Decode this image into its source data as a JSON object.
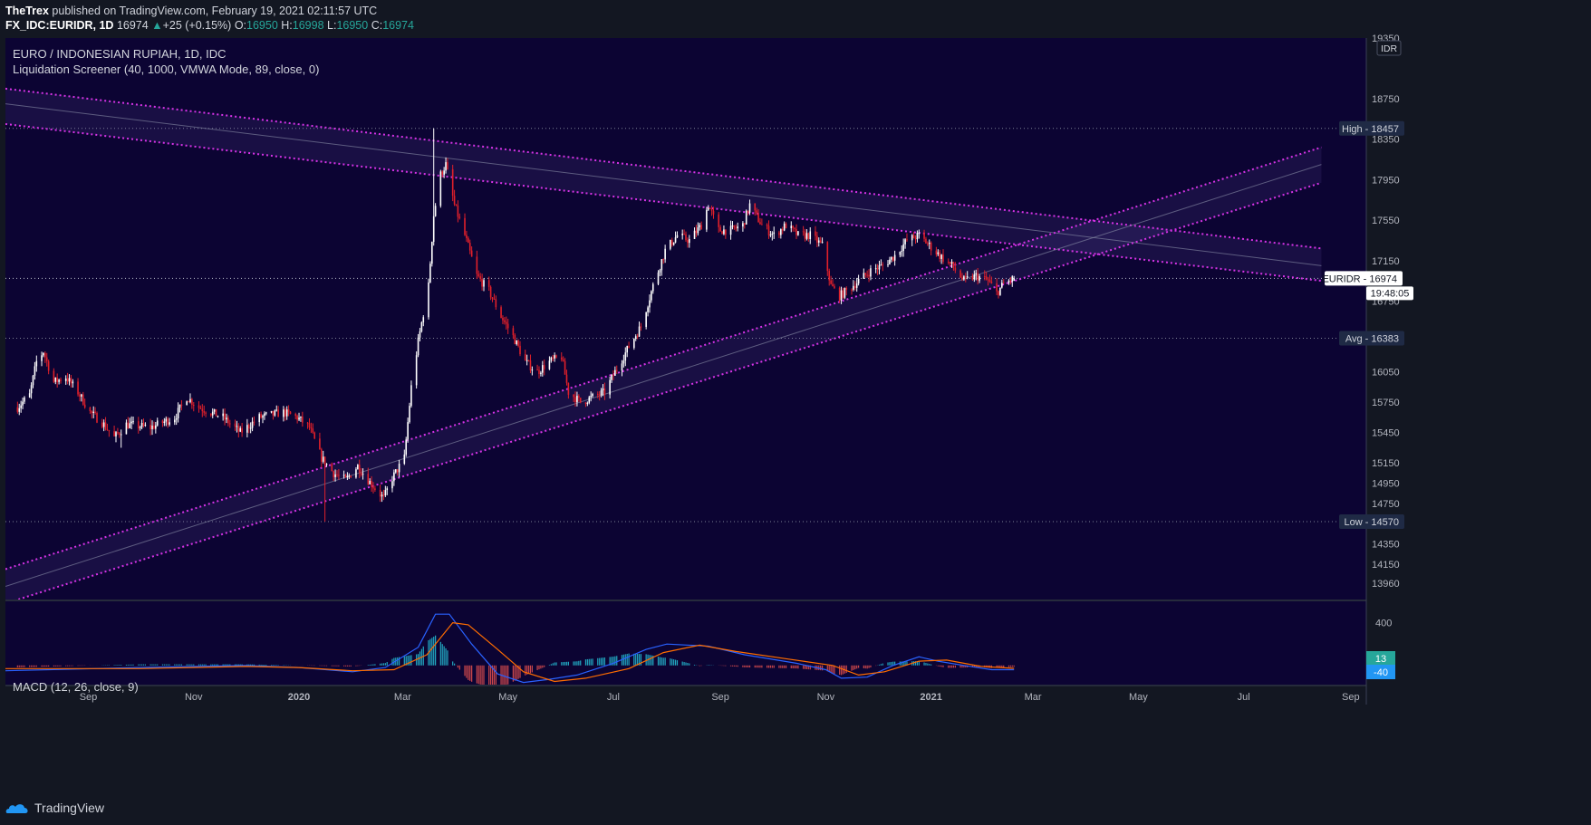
{
  "header": {
    "author": "TheTrex",
    "published": " published on TradingView.com, February 19, 2021 02:11:57 UTC",
    "symbol": "FX_IDC:EURIDR, 1D",
    "last": "16974",
    "change": "+25 (+0.15%)",
    "o_label": "O:",
    "o": "16950",
    "h_label": "H:",
    "h": "16998",
    "l_label": "L:",
    "l": "16950",
    "c_label": "C:",
    "c": "16974"
  },
  "legend": {
    "title": "EURO / INDONESIAN RUPIAH, 1D, IDC",
    "indicator": "Liquidation Screener (40, 1000, VMWA Mode, 89, close, 0)",
    "macd": "MACD (12, 26, close, 9)"
  },
  "footer": {
    "brand": "TradingView"
  },
  "colors": {
    "background": "#0c0433",
    "up": "#ffffff",
    "down": "#e0202a",
    "trendline": "#d633e6",
    "macd": "#2962ff",
    "signal": "#ff6d00",
    "hist_pos": "#26c6da",
    "hist_neg": "#ef5350"
  },
  "chart_data": [
    {
      "type": "candlestick",
      "currency_badge": "IDR",
      "ylim": [
        13800,
        19350
      ],
      "y_ticks": [
        "19350",
        "18750",
        "18350",
        "17950",
        "17550",
        "17150",
        "16750",
        "16050",
        "15750",
        "15450",
        "15150",
        "14950",
        "14750",
        "14350",
        "14150",
        "13960"
      ],
      "x_ticks": [
        {
          "label": "Sep",
          "date": "2019-09-01",
          "bold": false
        },
        {
          "label": "Nov",
          "date": "2019-11-01",
          "bold": false
        },
        {
          "label": "2020",
          "date": "2020-01-01",
          "bold": true
        },
        {
          "label": "Mar",
          "date": "2020-03-01",
          "bold": false
        },
        {
          "label": "May",
          "date": "2020-05-01",
          "bold": false
        },
        {
          "label": "Jul",
          "date": "2020-07-01",
          "bold": false
        },
        {
          "label": "Sep",
          "date": "2020-09-01",
          "bold": false
        },
        {
          "label": "Nov",
          "date": "2020-11-01",
          "bold": false
        },
        {
          "label": "2021",
          "date": "2021-01-01",
          "bold": true
        },
        {
          "label": "Mar",
          "date": "2021-03-01",
          "bold": false
        },
        {
          "label": "May",
          "date": "2021-05-01",
          "bold": false
        },
        {
          "label": "Jul",
          "date": "2021-07-01",
          "bold": false
        },
        {
          "label": "Sep",
          "date": "2021-09-01",
          "bold": false
        }
      ],
      "price_labels": [
        {
          "label": "High",
          "value": 18457,
          "kind": "dark"
        },
        {
          "label": "Avg",
          "value": 16383,
          "kind": "dark"
        },
        {
          "label": "Low",
          "value": 14570,
          "kind": "dark"
        },
        {
          "label": "EURIDR",
          "value": 16974,
          "kind": "light"
        }
      ],
      "countdown": "19:48:05",
      "close_path": [
        [
          "2019-07-22",
          15700
        ],
        [
          "2019-07-29",
          15820
        ],
        [
          "2019-08-02",
          16150
        ],
        [
          "2019-08-06",
          16250
        ],
        [
          "2019-08-12",
          15950
        ],
        [
          "2019-08-19",
          16000
        ],
        [
          "2019-08-26",
          15850
        ],
        [
          "2019-09-02",
          15650
        ],
        [
          "2019-09-09",
          15550
        ],
        [
          "2019-09-16",
          15400
        ],
        [
          "2019-09-23",
          15530
        ],
        [
          "2019-10-07",
          15500
        ],
        [
          "2019-10-21",
          15600
        ],
        [
          "2019-10-28",
          15800
        ],
        [
          "2019-11-04",
          15700
        ],
        [
          "2019-11-18",
          15600
        ],
        [
          "2019-11-28",
          15450
        ],
        [
          "2019-12-09",
          15600
        ],
        [
          "2019-12-23",
          15650
        ],
        [
          "2019-12-31",
          15600
        ],
        [
          "2020-01-07",
          15500
        ],
        [
          "2020-01-14",
          15200
        ],
        [
          "2020-01-21",
          15050
        ],
        [
          "2020-01-28",
          14980
        ],
        [
          "2020-02-04",
          15120
        ],
        [
          "2020-02-11",
          14960
        ],
        [
          "2020-02-19",
          14800
        ],
        [
          "2020-02-24",
          15000
        ],
        [
          "2020-03-02",
          15200
        ],
        [
          "2020-03-06",
          15900
        ],
        [
          "2020-03-10",
          16350
        ],
        [
          "2020-03-16",
          16900
        ],
        [
          "2020-03-19",
          17600
        ],
        [
          "2020-03-23",
          18000
        ],
        [
          "2020-03-26",
          18100
        ],
        [
          "2020-03-31",
          17700
        ],
        [
          "2020-04-06",
          17400
        ],
        [
          "2020-04-13",
          17000
        ],
        [
          "2020-04-20",
          16850
        ],
        [
          "2020-04-27",
          16600
        ],
        [
          "2020-05-04",
          16400
        ],
        [
          "2020-05-11",
          16150
        ],
        [
          "2020-05-18",
          16050
        ],
        [
          "2020-05-25",
          16150
        ],
        [
          "2020-06-01",
          16200
        ],
        [
          "2020-06-05",
          15850
        ],
        [
          "2020-06-12",
          15750
        ],
        [
          "2020-06-19",
          15800
        ],
        [
          "2020-06-26",
          15850
        ],
        [
          "2020-07-02",
          16050
        ],
        [
          "2020-07-10",
          16300
        ],
        [
          "2020-07-17",
          16500
        ],
        [
          "2020-07-24",
          16900
        ],
        [
          "2020-07-31",
          17250
        ],
        [
          "2020-08-07",
          17400
        ],
        [
          "2020-08-14",
          17350
        ],
        [
          "2020-08-21",
          17500
        ],
        [
          "2020-08-25",
          17700
        ],
        [
          "2020-08-31",
          17450
        ],
        [
          "2020-09-07",
          17450
        ],
        [
          "2020-09-14",
          17500
        ],
        [
          "2020-09-18",
          17700
        ],
        [
          "2020-09-25",
          17500
        ],
        [
          "2020-10-02",
          17400
        ],
        [
          "2020-10-09",
          17500
        ],
        [
          "2020-10-16",
          17400
        ],
        [
          "2020-10-23",
          17400
        ],
        [
          "2020-10-30",
          17300
        ],
        [
          "2020-11-04",
          16900
        ],
        [
          "2020-11-09",
          16800
        ],
        [
          "2020-11-13",
          16850
        ],
        [
          "2020-11-20",
          16950
        ],
        [
          "2020-11-27",
          17050
        ],
        [
          "2020-12-04",
          17100
        ],
        [
          "2020-12-11",
          17200
        ],
        [
          "2020-12-18",
          17350
        ],
        [
          "2020-12-25",
          17400
        ],
        [
          "2020-12-31",
          17300
        ],
        [
          "2021-01-06",
          17200
        ],
        [
          "2021-01-13",
          17100
        ],
        [
          "2021-01-20",
          16950
        ],
        [
          "2021-01-27",
          17000
        ],
        [
          "2021-02-03",
          16950
        ],
        [
          "2021-02-08",
          16830
        ],
        [
          "2021-02-12",
          16920
        ],
        [
          "2021-02-18",
          16974
        ]
      ],
      "trendlines": [
        {
          "style": "dotted",
          "from": [
            "2019-07-15",
            18850
          ],
          "to": [
            "2021-08-15",
            17270
          ]
        },
        {
          "style": "dotted",
          "from": [
            "2019-07-15",
            18500
          ],
          "to": [
            "2021-08-15",
            16950
          ]
        },
        {
          "style": "faint",
          "from": [
            "2019-07-15",
            18700
          ],
          "to": [
            "2021-08-15",
            17100
          ]
        },
        {
          "style": "dotted",
          "from": [
            "2019-07-15",
            13760
          ],
          "to": [
            "2021-08-15",
            17920
          ]
        },
        {
          "style": "dotted",
          "from": [
            "2019-07-15",
            14100
          ],
          "to": [
            "2021-08-15",
            18270
          ]
        },
        {
          "style": "faint",
          "from": [
            "2019-07-15",
            13930
          ],
          "to": [
            "2021-08-15",
            18100
          ]
        }
      ]
    },
    {
      "type": "line",
      "title": "MACD (12, 26, close, 9)",
      "ylim": [
        -180,
        600
      ],
      "y_ticks": [
        "400"
      ],
      "value_labels": [
        {
          "text": "13",
          "color": "#26a69a"
        },
        {
          "text": "-40",
          "color": "#2196f3"
        }
      ],
      "macd_path": [
        [
          "2019-07-15",
          -50
        ],
        [
          "2019-10-01",
          -20
        ],
        [
          "2019-12-01",
          0
        ],
        [
          "2020-01-01",
          -20
        ],
        [
          "2020-02-01",
          -60
        ],
        [
          "2020-02-20",
          -20
        ],
        [
          "2020-03-10",
          170
        ],
        [
          "2020-03-20",
          480
        ],
        [
          "2020-03-28",
          480
        ],
        [
          "2020-04-10",
          200
        ],
        [
          "2020-04-25",
          -80
        ],
        [
          "2020-05-10",
          -160
        ],
        [
          "2020-05-25",
          -130
        ],
        [
          "2020-06-10",
          -90
        ],
        [
          "2020-07-01",
          20
        ],
        [
          "2020-07-20",
          150
        ],
        [
          "2020-08-01",
          200
        ],
        [
          "2020-08-25",
          180
        ],
        [
          "2020-09-15",
          100
        ],
        [
          "2020-10-15",
          20
        ],
        [
          "2020-11-01",
          -40
        ],
        [
          "2020-11-10",
          -120
        ],
        [
          "2020-11-25",
          -110
        ],
        [
          "2020-12-10",
          0
        ],
        [
          "2020-12-25",
          80
        ],
        [
          "2021-01-05",
          40
        ],
        [
          "2021-01-20",
          0
        ],
        [
          "2021-02-05",
          -40
        ],
        [
          "2021-02-18",
          -40
        ]
      ],
      "signal_path": [
        [
          "2019-07-15",
          -30
        ],
        [
          "2019-10-01",
          -30
        ],
        [
          "2019-12-01",
          -10
        ],
        [
          "2020-01-01",
          -20
        ],
        [
          "2020-02-01",
          -50
        ],
        [
          "2020-02-25",
          -40
        ],
        [
          "2020-03-15",
          100
        ],
        [
          "2020-03-30",
          400
        ],
        [
          "2020-04-08",
          380
        ],
        [
          "2020-04-25",
          150
        ],
        [
          "2020-05-10",
          -60
        ],
        [
          "2020-05-28",
          -150
        ],
        [
          "2020-06-15",
          -120
        ],
        [
          "2020-07-10",
          -30
        ],
        [
          "2020-07-30",
          120
        ],
        [
          "2020-08-20",
          190
        ],
        [
          "2020-09-10",
          130
        ],
        [
          "2020-10-10",
          60
        ],
        [
          "2020-11-05",
          0
        ],
        [
          "2020-11-20",
          -90
        ],
        [
          "2020-12-05",
          -60
        ],
        [
          "2020-12-25",
          40
        ],
        [
          "2021-01-10",
          50
        ],
        [
          "2021-01-30",
          -10
        ],
        [
          "2021-02-18",
          -27
        ]
      ]
    }
  ]
}
